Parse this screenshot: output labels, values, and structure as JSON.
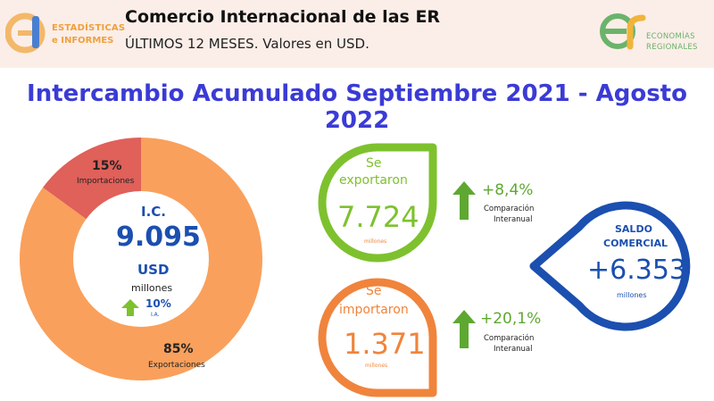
{
  "header": {
    "logo_left_line1": "ESTADÍSTICAS",
    "logo_left_line2": "e INFORMES",
    "title": "Comercio Internacional de las ER",
    "subtitle": "ÚLTIMOS 12 MESES. Valores en USD.",
    "logo_right_line1": "ECONOMÍAS",
    "logo_right_line2": "REGIONALES"
  },
  "main_title": "Intercambio Acumulado Septiembre 2021 - Agosto 2022",
  "donut": {
    "center_label": "I.C.",
    "center_value": "9.095",
    "center_unit": "USD",
    "center_sub": "millones",
    "ia_value": "10%",
    "ia_label": "I.A."
  },
  "exports": {
    "line1": "Se",
    "line2": "exportaron",
    "value": "7.724",
    "unit": "millones",
    "change": "+8,4%",
    "change_label1": "Comparación",
    "change_label2": "Interanual"
  },
  "imports": {
    "line1": "Se",
    "line2": "importaron",
    "value": "1.371",
    "unit": "millones",
    "change": "+20,1%",
    "change_label1": "Comparación",
    "change_label2": "Interanual"
  },
  "balance": {
    "line1": "SALDO",
    "line2": "COMERCIAL",
    "value": "+6.353",
    "unit": "millones"
  },
  "colors": {
    "exports_slice": "#f9a05c",
    "imports_slice": "#e0605a",
    "exports_ring": "#7ec12e",
    "imports_ring": "#f0843c",
    "balance_ring": "#1b4fb0",
    "title": "#3b3bd6",
    "arrow": "#5ea832"
  },
  "chart_data": {
    "type": "pie",
    "categories": [
      "Importaciones",
      "Exportaciones"
    ],
    "values": [
      15,
      85
    ],
    "labels": [
      "15%",
      "85%"
    ],
    "units": "%"
  }
}
